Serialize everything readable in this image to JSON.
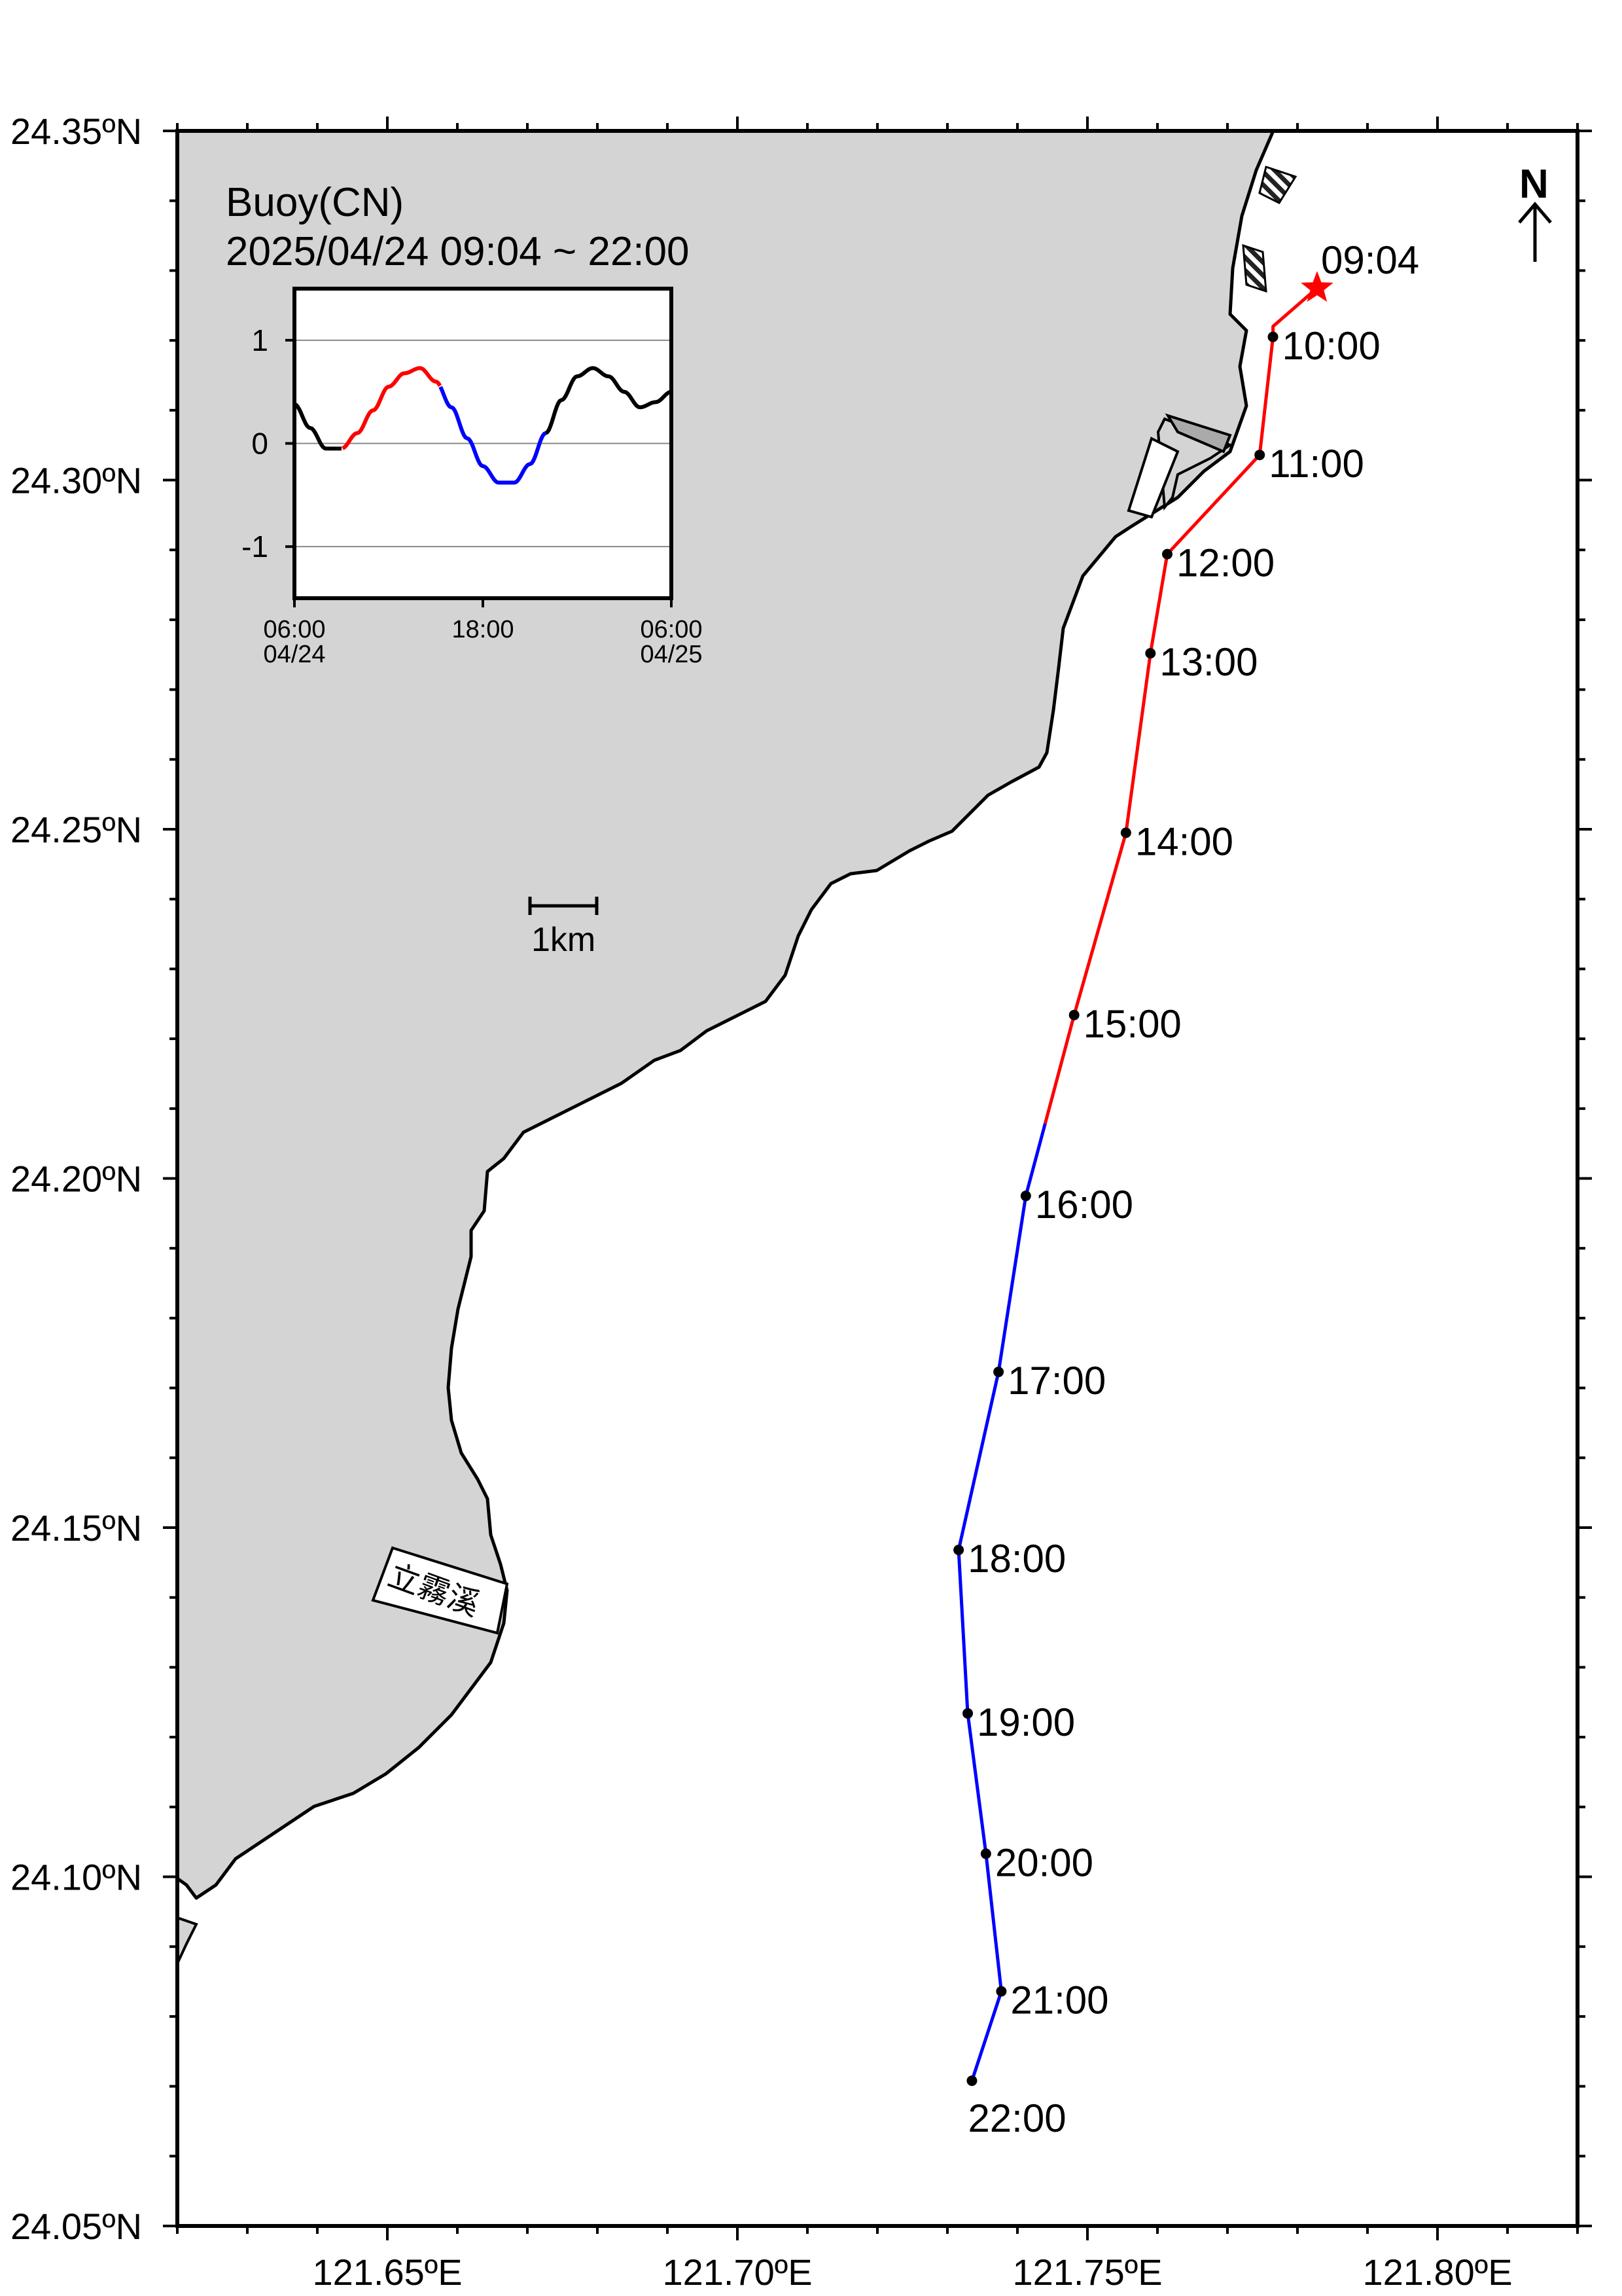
{
  "map": {
    "title": "Buoy(CN)",
    "subtitle": "2025/04/24 09:04 ~ 22:00",
    "north_label": "N",
    "scale_label": "1km",
    "place_label": "立霧溪",
    "lat_labels": [
      "24.35ºN",
      "24.30ºN",
      "24.25ºN",
      "24.20ºN",
      "24.15ºN",
      "24.10ºN",
      "24.05ºN"
    ],
    "lon_labels": [
      "121.65ºE",
      "121.70ºE",
      "121.75ºE",
      "121.80ºE"
    ],
    "lat_range": [
      24.05,
      24.35
    ],
    "lon_range": [
      121.62,
      121.82
    ]
  },
  "track": {
    "start_label": "09:04",
    "colors": {
      "before_high_tide": "#ff0000",
      "after_high_tide": "#0000ff",
      "start_marker": "#ff0000"
    },
    "points": [
      {
        "time": "10:00",
        "lon": 121.7765,
        "lat": 24.3205
      },
      {
        "time": "11:00",
        "lon": 121.7746,
        "lat": 24.3036
      },
      {
        "time": "12:00",
        "lon": 121.7614,
        "lat": 24.2894
      },
      {
        "time": "13:00",
        "lon": 121.759,
        "lat": 24.2752
      },
      {
        "time": "14:00",
        "lon": 121.7555,
        "lat": 24.2495
      },
      {
        "time": "15:00",
        "lon": 121.7481,
        "lat": 24.2234
      },
      {
        "time": "16:00",
        "lon": 121.7412,
        "lat": 24.1975
      },
      {
        "time": "17:00",
        "lon": 121.7373,
        "lat": 24.1723
      },
      {
        "time": "18:00",
        "lon": 121.7316,
        "lat": 24.1468
      },
      {
        "time": "19:00",
        "lon": 121.7329,
        "lat": 24.1234
      },
      {
        "time": "20:00",
        "lon": 121.7355,
        "lat": 24.1033
      },
      {
        "time": "21:00",
        "lon": 121.7377,
        "lat": 24.0836
      },
      {
        "time": "22:00",
        "lon": 121.7335,
        "lat": 24.0708
      }
    ]
  },
  "inset": {
    "y_ticks": [
      "1",
      "0",
      "-1"
    ],
    "x_ticks": [
      {
        "time": "06:00",
        "date": "04/24"
      },
      {
        "time": "18:00",
        "date": ""
      },
      {
        "time": "06:00",
        "date": "04/25"
      }
    ],
    "x_hours_range": [
      0,
      24
    ],
    "y_range": [
      -1.5,
      1.5
    ],
    "tide_curve": "tide level vs hour since 04/24 06:00"
  },
  "chart_data": {
    "type": "line",
    "title": "",
    "xlabel": "",
    "ylabel": "",
    "x_tick_labels": [
      "06:00 04/24",
      "18:00",
      "06:00 04/25"
    ],
    "ylim": [
      -1.5,
      1.5
    ],
    "series": [
      {
        "values_hours": [
          0,
          1,
          2,
          3,
          4,
          5,
          6,
          7,
          8,
          9,
          10,
          11,
          12,
          13,
          14,
          15,
          16,
          17,
          18,
          19,
          20,
          21,
          22,
          23,
          24
        ],
        "values": [
          0.38,
          0.15,
          -0.05,
          -0.05,
          0.1,
          0.32,
          0.55,
          0.68,
          0.73,
          0.6,
          0.35,
          0.05,
          -0.22,
          -0.38,
          -0.38,
          -0.2,
          0.1,
          0.42,
          0.65,
          0.73,
          0.65,
          0.5,
          0.35,
          0.4,
          0.5
        ]
      }
    ]
  }
}
